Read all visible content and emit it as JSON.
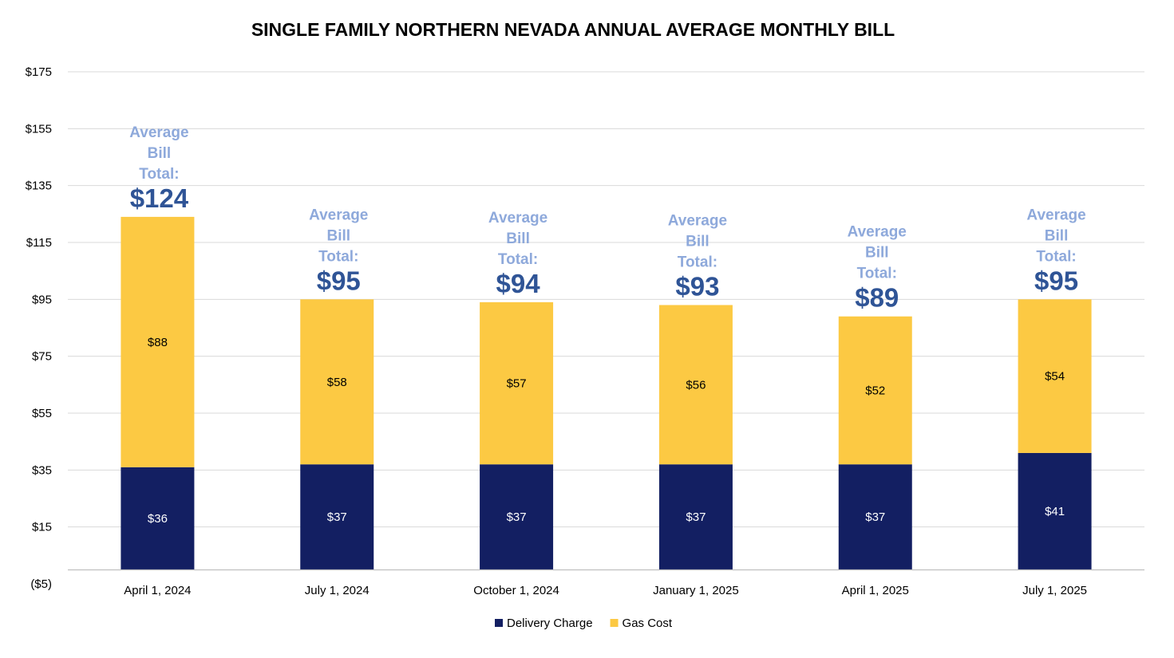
{
  "chart_data": {
    "type": "bar",
    "stacked": true,
    "title": "SINGLE FAMILY NORTHERN NEVADA ANNUAL AVERAGE MONTHLY BILL",
    "xlabel": "",
    "ylabel": "",
    "categories": [
      "April 1, 2024",
      "July 1, 2024",
      "October 1, 2024",
      "January 1, 2025",
      "April 1, 2025",
      "July 1, 2025"
    ],
    "series": [
      {
        "name": "Delivery Charge",
        "color": "#131F62",
        "label_color": "#FFFFFF",
        "values": [
          36,
          37,
          37,
          37,
          37,
          41
        ],
        "labels": [
          "$36",
          "$37",
          "$37",
          "$37",
          "$37",
          "$41"
        ]
      },
      {
        "name": "Gas Cost",
        "color": "#FCC943",
        "label_color": "#000000",
        "values": [
          88,
          58,
          57,
          56,
          52,
          54
        ],
        "labels": [
          "$88",
          "$58",
          "$57",
          "$56",
          "$52",
          "$54"
        ]
      }
    ],
    "totals": [
      124,
      95,
      94,
      93,
      89,
      95
    ],
    "total_labels": [
      "$124",
      "$95",
      "$94",
      "$93",
      "$89",
      "$95"
    ],
    "annotation_lines": [
      "Average",
      "Bill",
      "Total:"
    ],
    "annotation_color": "#8EA9DB",
    "total_color": "#2F5496",
    "ylim": [
      -5,
      175
    ],
    "yticks": [
      175,
      155,
      135,
      115,
      95,
      75,
      55,
      35,
      15,
      -5
    ],
    "ytick_labels": [
      "$175",
      "$155",
      "$135",
      "$115",
      "$95",
      "$75",
      "$55",
      "$35",
      "$15",
      "($5)"
    ],
    "grid": true,
    "legend_position": "bottom"
  }
}
